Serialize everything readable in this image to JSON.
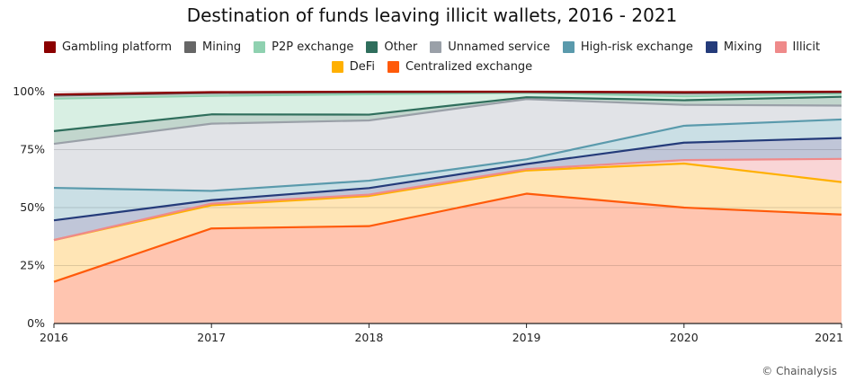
{
  "chart_data": {
    "type": "area",
    "stacked": true,
    "normalized_percent": true,
    "title": "Destination of funds leaving illicit wallets, 2016 - 2021",
    "xlabel": "",
    "ylabel": "",
    "x": [
      "2016",
      "2017",
      "2018",
      "2019",
      "2020",
      "2021"
    ],
    "ylim": [
      0,
      100
    ],
    "yticks": [
      "0%",
      "25%",
      "50%",
      "75%",
      "100%"
    ],
    "grid": true,
    "legend_position": "top",
    "series": [
      {
        "name": "Centralized exchange",
        "color": "#ff5a0a",
        "fill": "#ffc5b0",
        "values": [
          18,
          41,
          42,
          56,
          50,
          47
        ]
      },
      {
        "name": "DeFi",
        "color": "#ffb000",
        "fill": "#ffe5b5",
        "values": [
          18,
          10,
          13,
          10,
          19,
          14
        ]
      },
      {
        "name": "Illicit",
        "color": "#ef8a8a",
        "fill": "#f9d5d6",
        "values": [
          0,
          0.7,
          0.6,
          0.6,
          1.5,
          10
        ]
      },
      {
        "name": "Mixing",
        "color": "#243b7a",
        "fill": "#c0c6d8",
        "values": [
          8.5,
          1.5,
          2.8,
          2.2,
          7.5,
          9
        ]
      },
      {
        "name": "High-risk exchange",
        "color": "#5a9aac",
        "fill": "#cadfe5",
        "values": [
          14,
          4,
          3.2,
          2,
          7.3,
          8
        ]
      },
      {
        "name": "Unnamed service",
        "color": "#9aa0a8",
        "fill": "#e1e3e7",
        "values": [
          19,
          29,
          26,
          26,
          9,
          6
        ]
      },
      {
        "name": "Other",
        "color": "#2f6e5c",
        "fill": "#c2d6cd",
        "values": [
          5.5,
          4,
          2.5,
          0.8,
          2,
          3.8
        ]
      },
      {
        "name": "P2P exchange",
        "color": "#8fd1b0",
        "fill": "#d8efe3",
        "values": [
          14,
          8,
          8.8,
          1.9,
          1.7,
          1.3
        ]
      },
      {
        "name": "Mining",
        "color": "#666666",
        "fill": "#d6d6d6",
        "values": [
          1.3,
          1.2,
          0.8,
          0.3,
          1.3,
          0.6
        ]
      },
      {
        "name": "Gambling platform",
        "color": "#8b0000",
        "fill": "#d9a0a0",
        "values": [
          0.5,
          0.4,
          0.3,
          0.2,
          0.5,
          0.3
        ]
      }
    ],
    "legend_order": [
      [
        "Gambling platform",
        "Mining",
        "P2P exchange",
        "Other",
        "Unnamed service",
        "High-risk exchange",
        "Mixing",
        "Illicit"
      ],
      [
        "DeFi",
        "Centralized exchange"
      ]
    ]
  },
  "credit": "© Chainalysis"
}
